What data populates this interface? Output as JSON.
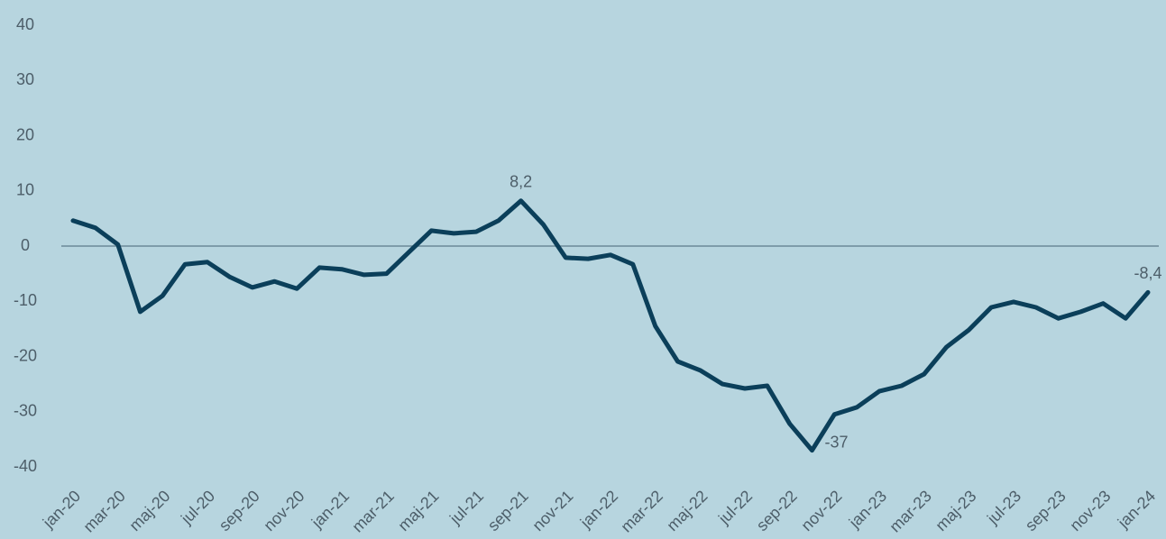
{
  "chart_data": {
    "type": "line",
    "categories": [
      "jan-20",
      null,
      "mar-20",
      null,
      "maj-20",
      null,
      "jul-20",
      null,
      "sep-20",
      null,
      "nov-20",
      null,
      "jan-21",
      null,
      "mar-21",
      null,
      "maj-21",
      null,
      "jul-21",
      null,
      "sep-21",
      null,
      "nov-21",
      null,
      "jan-22",
      null,
      "mar-22",
      null,
      "maj-22",
      null,
      "jul-22",
      null,
      "sep-22",
      null,
      "nov-22",
      null,
      "jan-23",
      null,
      "mar-23",
      null,
      "maj-23",
      null,
      "jul-23",
      null,
      "sep-23",
      null,
      "nov-23",
      null,
      "jan-24"
    ],
    "series": [
      {
        "color": "#0b3f5a",
        "values": [
          4.6,
          3.3,
          0.3,
          -11.9,
          -9.0,
          -3.3,
          -2.9,
          -5.6,
          -7.5,
          -6.4,
          -7.7,
          -3.9,
          -4.2,
          -5.2,
          -5.0,
          -1.1,
          2.8,
          2.3,
          2.6,
          4.6,
          8.2,
          3.9,
          -2.1,
          -2.3,
          -1.6,
          -3.3,
          -14.5,
          -20.9,
          -22.5,
          -25.0,
          -25.8,
          -25.3,
          -32.2,
          -37,
          -30.5,
          -29.2,
          -26.3,
          -25.3,
          -23.2,
          -18.3,
          -15.2,
          -11.1,
          -10.1,
          -11.1,
          -13.1,
          -11.9,
          -10.4,
          -13.1,
          -8.4
        ],
        "value_labels": [
          null,
          null,
          null,
          null,
          null,
          null,
          null,
          null,
          null,
          null,
          null,
          null,
          null,
          null,
          null,
          null,
          null,
          null,
          null,
          null,
          "8,2",
          null,
          null,
          null,
          null,
          null,
          null,
          null,
          null,
          null,
          null,
          null,
          null,
          "-37",
          null,
          null,
          null,
          null,
          null,
          null,
          null,
          null,
          null,
          null,
          null,
          null,
          null,
          null,
          "-8,4"
        ]
      }
    ],
    "ylim": [
      -40,
      40
    ],
    "yticks": [
      40,
      30,
      20,
      10,
      0,
      -10,
      -20,
      -30,
      -40
    ],
    "grid": false
  }
}
